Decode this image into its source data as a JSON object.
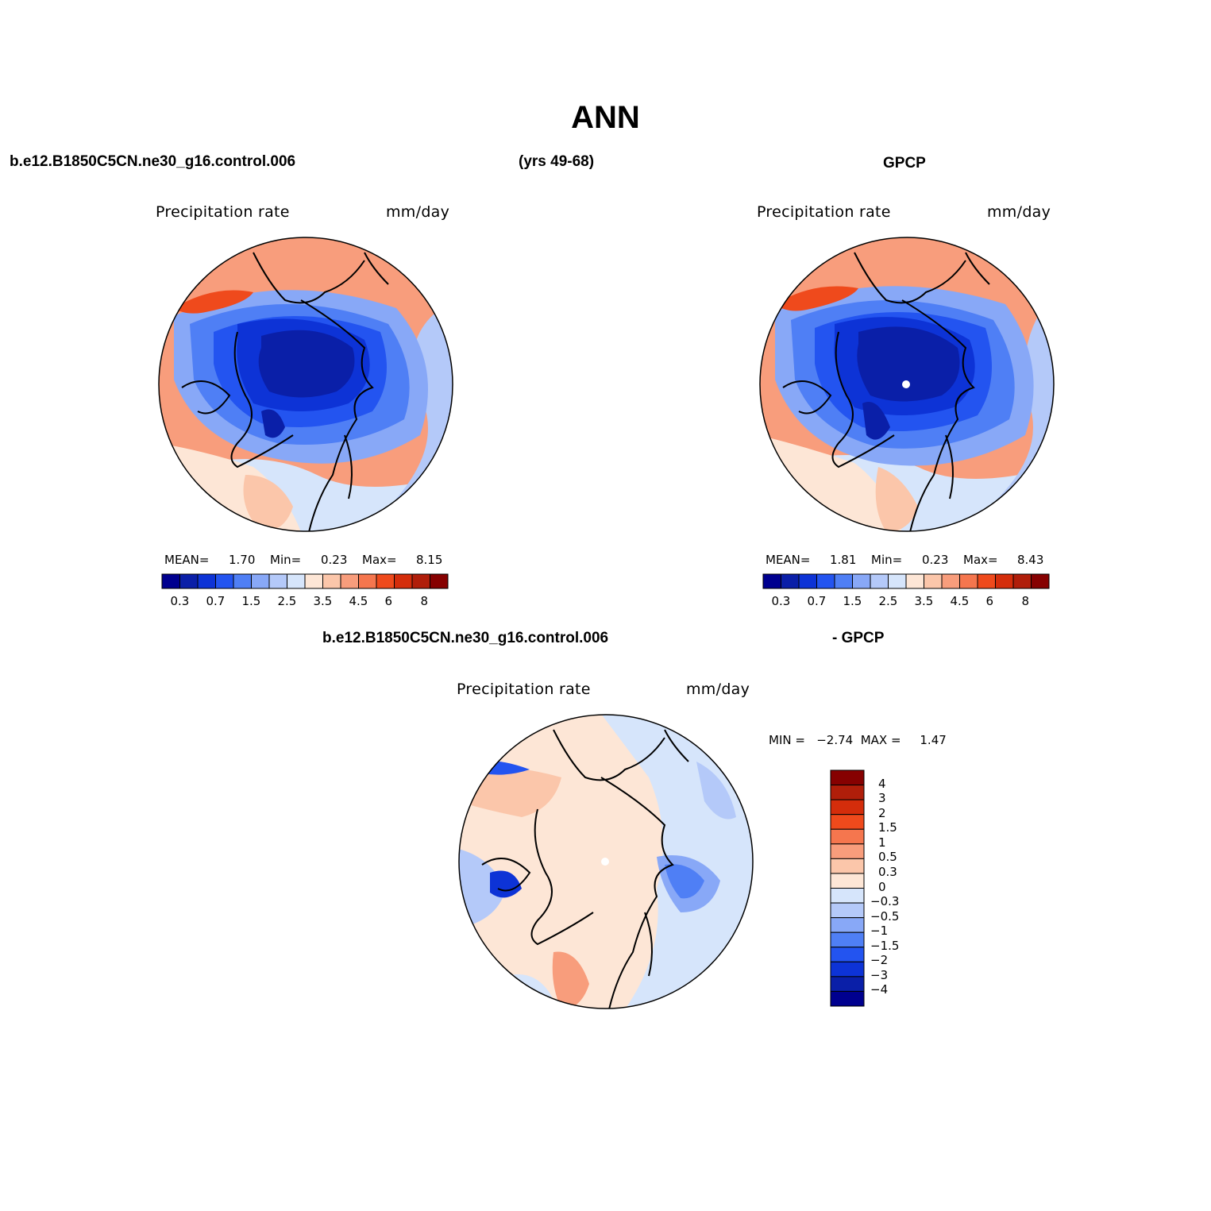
{
  "figure": {
    "title": "ANN",
    "header_left": "b.e12.B1850C5CN.ne30_g16.control.006",
    "header_center": "(yrs 49-68)",
    "header_right": "GPCP"
  },
  "panels": {
    "model": {
      "var_label": "Precipitation rate",
      "units": "mm/day",
      "mean_label": "MEAN=",
      "mean": "1.70",
      "min_label": "Min=",
      "min": "0.23",
      "max_label": "Max=",
      "max": "8.15"
    },
    "obs": {
      "var_label": "Precipitation rate",
      "units": "mm/day",
      "mean_label": "MEAN=",
      "mean": "1.81",
      "min_label": "Min=",
      "min": "0.23",
      "max_label": "Max=",
      "max": "8.43"
    },
    "diff": {
      "title_left": "b.e12.B1850C5CN.ne30_g16.control.006",
      "title_right": "- GPCP",
      "var_label": "Precipitation rate",
      "units": "mm/day",
      "minmax": "MIN =   −2.74  MAX =     1.47"
    }
  },
  "colorbar_abs": {
    "colors": [
      "#00008f",
      "#0a1fa8",
      "#0d33d6",
      "#2354f0",
      "#4f7ff5",
      "#88a8f7",
      "#b4c9f9",
      "#d6e5fb",
      "#fde6d6",
      "#fbc6aa",
      "#f89d7c",
      "#f5764e",
      "#ef4a1c",
      "#d42d0b",
      "#b01e0a",
      "#860101"
    ],
    "tick_labels": [
      "0.3",
      "0.7",
      "1.5",
      "2.5",
      "3.5",
      "4.5",
      "6",
      "8"
    ]
  },
  "colorbar_diff": {
    "colors_top_to_bottom": [
      "#860101",
      "#b01e0a",
      "#d42d0b",
      "#ef4a1c",
      "#f5764e",
      "#f89d7c",
      "#fbc6aa",
      "#fde6d6",
      "#d6e5fb",
      "#b4c9f9",
      "#88a8f7",
      "#4f7ff5",
      "#2354f0",
      "#0d33d6",
      "#0a1fa8",
      "#00008f"
    ],
    "tick_labels": [
      "4",
      "3",
      "2",
      "1.5",
      "1",
      "0.5",
      "0.3",
      "0",
      "−0.3",
      "−0.5",
      "−1",
      "−1.5",
      "−2",
      "−3",
      "−4"
    ]
  },
  "map_fields": {
    "model": [
      "#f89d7c",
      "#d6e5fb",
      "#b4c9f9",
      "#88a8f7",
      "#4f7ff5",
      "#2354f0",
      "#0d33d6",
      "#0a1fa8",
      "#ef4a1c",
      "#fde6d6",
      "#fbc6aa",
      "#0a1fa8"
    ],
    "obs": [
      "#f89d7c",
      "#d6e5fb",
      "#b4c9f9",
      "#88a8f7",
      "#4f7ff5",
      "#2354f0",
      "#0d33d6",
      "#0a1fa8",
      "#ef4a1c",
      "#fde6d6",
      "#fbc6aa",
      "#0a1fa8"
    ],
    "diff": [
      "#fde6d6",
      "#d6e5fb",
      "#b4c9f9",
      "#88a8f7",
      "#4f7ff5",
      "#fbc6aa",
      "#f89d7c",
      "#2354f0",
      "#0d33d6",
      "#d6e5fb",
      "#fde6d6",
      "#b4c9f9"
    ]
  }
}
